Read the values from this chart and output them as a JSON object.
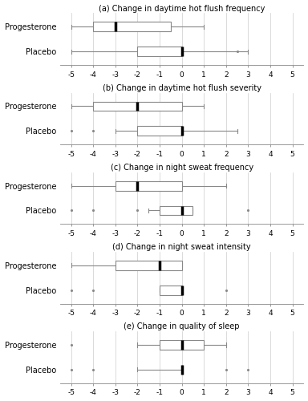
{
  "panels": [
    {
      "title": "(a) Change in daytime hot flush frequency",
      "groups": [
        "Progesterone",
        "Placebo"
      ],
      "boxes": [
        {
          "whisker_low": -5,
          "q1": -4,
          "median": -3,
          "q3": -0.5,
          "whisker_high": 1,
          "fliers": []
        },
        {
          "whisker_low": -5,
          "q1": -2,
          "median": 0,
          "q3": 0,
          "whisker_high": 3,
          "fliers": [
            2.5
          ]
        }
      ]
    },
    {
      "title": "(b) Change in daytime hot flush severity",
      "groups": [
        "Progesterone",
        "Placebo"
      ],
      "boxes": [
        {
          "whisker_low": -5,
          "q1": -4,
          "median": -2,
          "q3": 0,
          "whisker_high": 1,
          "fliers": []
        },
        {
          "whisker_low": -3,
          "q1": -2,
          "median": 0,
          "q3": 0,
          "whisker_high": 2.5,
          "fliers": [
            -5,
            -4
          ]
        }
      ]
    },
    {
      "title": "(c) Change in night sweat frequency",
      "groups": [
        "Progesterone",
        "Placebo"
      ],
      "boxes": [
        {
          "whisker_low": -5,
          "q1": -3,
          "median": -2,
          "q3": 0,
          "whisker_high": 2,
          "fliers": []
        },
        {
          "whisker_low": -1.5,
          "q1": -1,
          "median": 0,
          "q3": 0.5,
          "whisker_high": 0.5,
          "fliers": [
            -5,
            -4,
            -2,
            3
          ]
        }
      ]
    },
    {
      "title": "(d) Change in night sweat intensity",
      "groups": [
        "Progesterone",
        "Placebo"
      ],
      "boxes": [
        {
          "whisker_low": -5,
          "q1": -3,
          "median": -1,
          "q3": 0,
          "whisker_high": 0,
          "fliers": []
        },
        {
          "whisker_low": -1,
          "q1": -1,
          "median": 0,
          "q3": 0,
          "whisker_high": 0,
          "fliers": [
            -5,
            -4,
            2
          ]
        }
      ]
    },
    {
      "title": "(e) Change in quality of sleep",
      "groups": [
        "Progesterone",
        "Placebo"
      ],
      "boxes": [
        {
          "whisker_low": -2,
          "q1": -1,
          "median": 0,
          "q3": 1,
          "whisker_high": 2,
          "fliers": [
            -5
          ]
        },
        {
          "whisker_low": -2,
          "q1": 0,
          "median": 0,
          "q3": 0,
          "whisker_high": 0,
          "fliers": [
            -5,
            -4,
            2,
            3
          ]
        }
      ]
    }
  ],
  "xlim": [
    -5.5,
    5.5
  ],
  "xticks": [
    -5,
    -4,
    -3,
    -2,
    -1,
    0,
    1,
    2,
    3,
    4,
    5
  ],
  "bg_color": "white",
  "title_fontsize": 7,
  "label_fontsize": 7,
  "tick_fontsize": 6.5
}
